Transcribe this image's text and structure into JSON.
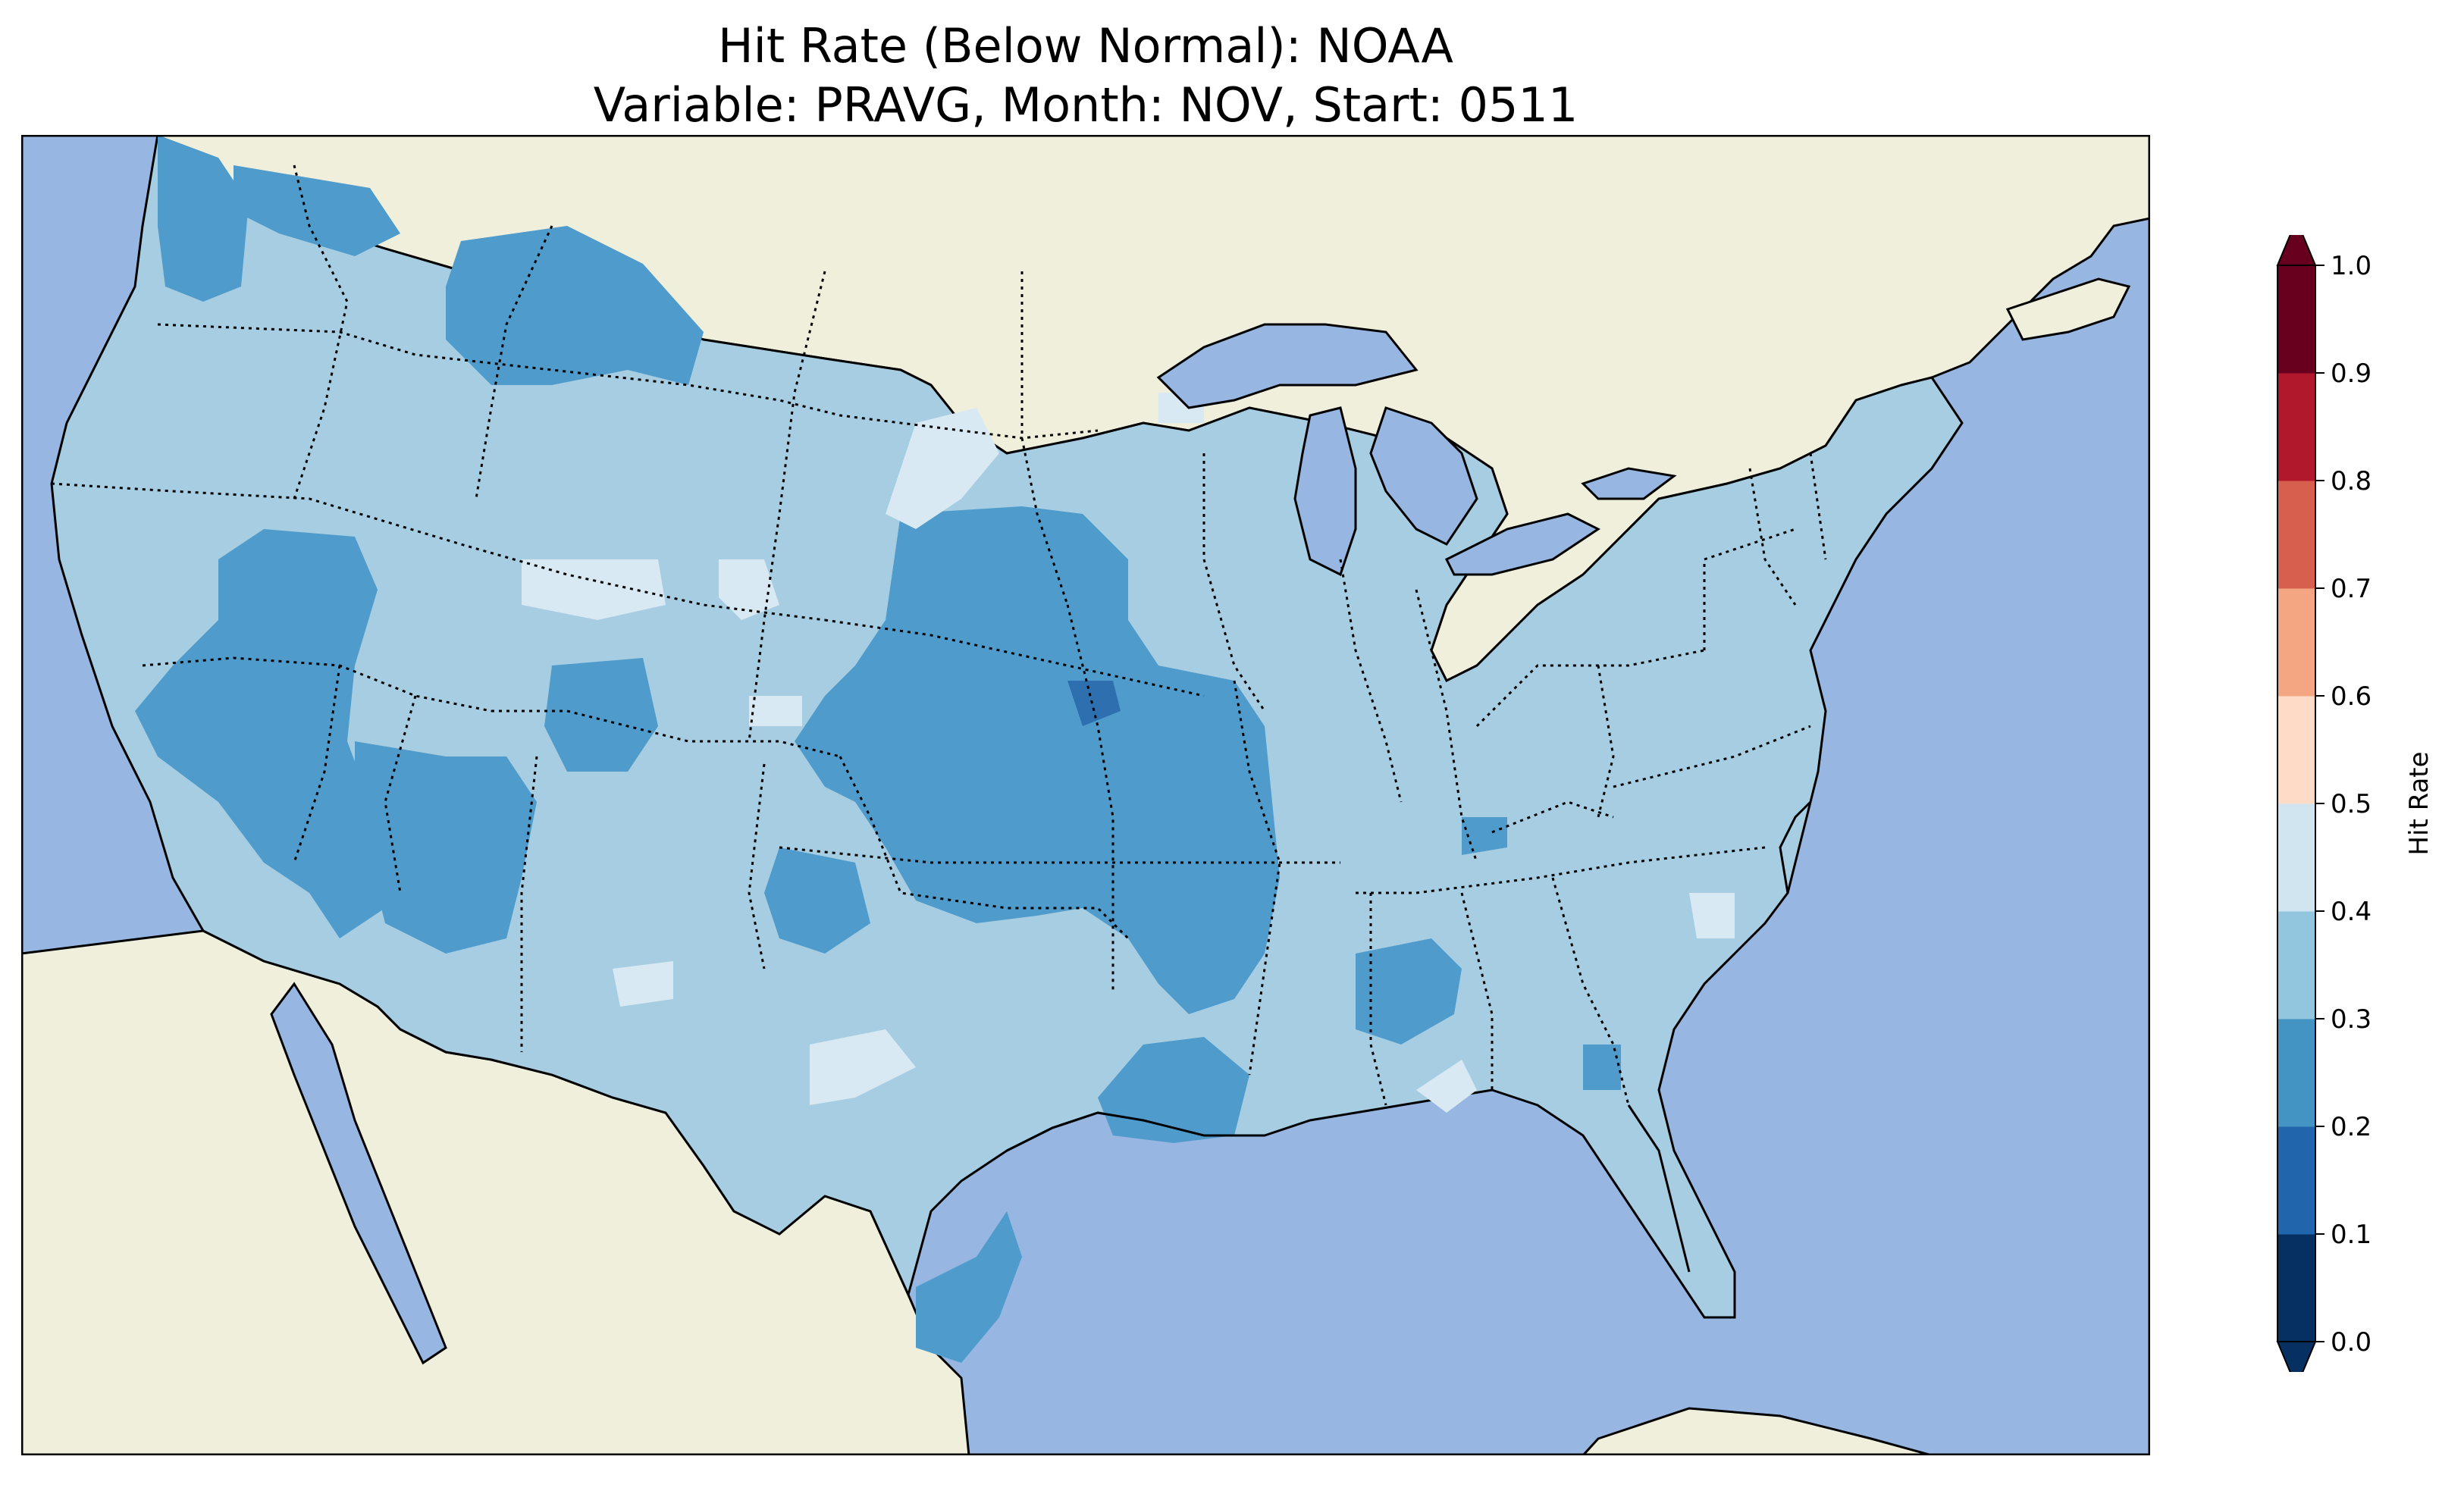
{
  "title": {
    "line1": "Hit Rate (Below Normal): NOAA",
    "line2": "Variable: PRAVG, Month: NOV, Start: 0511"
  },
  "colorbar": {
    "label": "Hit Rate",
    "levels": [
      0.0,
      0.1,
      0.2,
      0.3,
      0.4,
      0.5,
      0.6,
      0.7,
      0.8,
      0.9,
      1.0
    ],
    "tick_labels": [
      "0.0",
      "0.1",
      "0.2",
      "0.3",
      "0.4",
      "0.5",
      "0.6",
      "0.7",
      "0.8",
      "0.9",
      "1.0"
    ],
    "colors": [
      "#053061",
      "#2166ac",
      "#4393c3",
      "#92c5de",
      "#d1e5f0",
      "#fddbc7",
      "#f4a582",
      "#d6604d",
      "#b2182b",
      "#67001f"
    ],
    "under_color": "#053061",
    "over_color": "#67001f",
    "cmap": "RdBu_r",
    "extend": "both"
  },
  "map": {
    "projection": "PlateCarree",
    "extent_lon": [
      -125,
      -66
    ],
    "extent_lat": [
      24,
      50
    ],
    "ocean_color": "#97b6e1",
    "land_color": "#efefdb",
    "conus_base_class_range": [
      0.3,
      0.4
    ],
    "dominant_class_color": "#a6cde2",
    "features": [
      "coastline",
      "state borders",
      "country borders",
      "lakes"
    ]
  },
  "chart_data": {
    "type": "heatmap",
    "title": "Hit Rate (Below Normal): NOAA\nVariable: PRAVG, Month: NOV, Start: 0511",
    "variable": "PRAVG",
    "month": "NOV",
    "start": "0511",
    "colorbar_label": "Hit Rate",
    "value_range": [
      0.0,
      1.0
    ],
    "regions": [
      {
        "region": "Most of CONUS (background)",
        "range": [
          0.3,
          0.4
        ]
      },
      {
        "region": "Western Washington / Puget Sound",
        "range": [
          0.2,
          0.3
        ]
      },
      {
        "region": "Western Montana",
        "range": [
          0.2,
          0.3
        ]
      },
      {
        "region": "Nevada / eastern California",
        "range": [
          0.2,
          0.3
        ]
      },
      {
        "region": "Arizona / southern Nevada",
        "range": [
          0.2,
          0.3
        ]
      },
      {
        "region": "Kansas / Nebraska / Oklahoma / Missouri / Arkansas",
        "range": [
          0.2,
          0.3
        ]
      },
      {
        "region": "Eastern Nebraska (small)",
        "range": [
          0.1,
          0.2
        ]
      },
      {
        "region": "South Texas coast",
        "range": [
          0.2,
          0.3
        ]
      },
      {
        "region": "Louisiana / Mississippi",
        "range": [
          0.2,
          0.3
        ]
      },
      {
        "region": "Central Alabama / Georgia",
        "range": [
          0.2,
          0.3
        ]
      },
      {
        "region": "South Dakota / Wyoming / north Texas patches",
        "range": [
          0.4,
          0.5
        ]
      },
      {
        "region": "North Carolina coast / Georgia-Alabama patches",
        "range": [
          0.4,
          0.5
        ]
      }
    ]
  }
}
